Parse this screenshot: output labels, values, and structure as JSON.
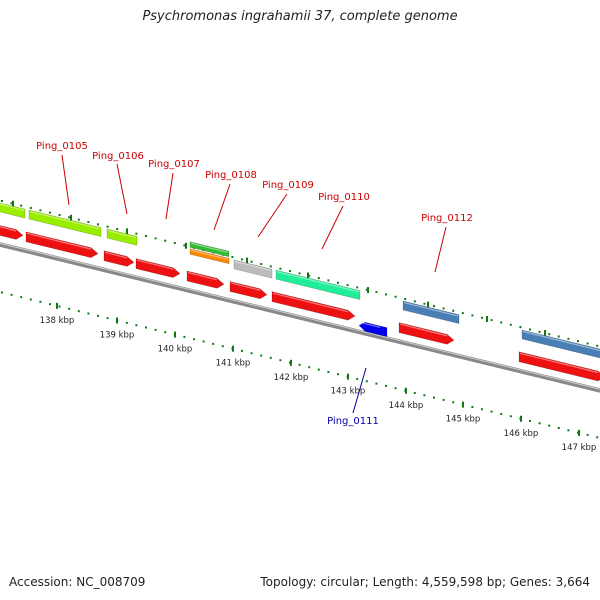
{
  "title": "Psychromonas ingrahamii 37, complete genome",
  "accession_line": "Accession: NC_008709",
  "stats_line": "Topology: circular; Length: 4,559,598 bp; Genes: 3,664",
  "scale_labels": [
    "138 kbp",
    "139 kbp",
    "140 kbp",
    "141 kbp",
    "142 kbp",
    "143 kbp",
    "144 kbp",
    "145 kbp",
    "146 kbp",
    "147 kbp"
  ],
  "gene_labels": [
    {
      "text": "Ping_0105",
      "color": "#cc0000"
    },
    {
      "text": "Ping_0106",
      "color": "#cc0000"
    },
    {
      "text": "Ping_0107",
      "color": "#cc0000"
    },
    {
      "text": "Ping_0108",
      "color": "#cc0000"
    },
    {
      "text": "Ping_0109",
      "color": "#cc0000"
    },
    {
      "text": "Ping_0110",
      "color": "#cc0000"
    },
    {
      "text": "Ping_0112",
      "color": "#cc0000"
    },
    {
      "text": "Ping_0111",
      "color": "#0000aa"
    }
  ],
  "colors": {
    "cog_yellowgreen": "#99ee00",
    "cds_red": "#ee1111",
    "cog_green": "#33bb33",
    "cog_orange": "#ff8800",
    "cog_gray": "#bbbbbb",
    "cog_mint": "#22ee99",
    "cog_steelblue": "#4a7fb5",
    "reverse_blue": "#0000ee",
    "backbone": "#888888",
    "tick_green": "#117711"
  }
}
